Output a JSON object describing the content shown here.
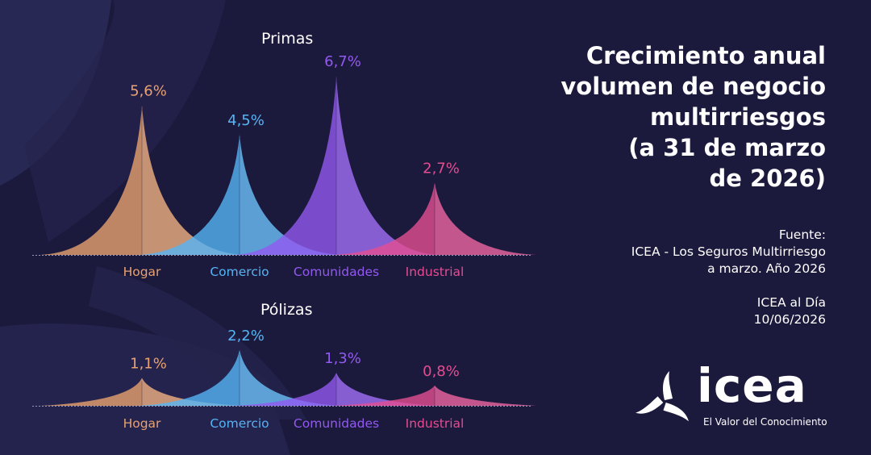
{
  "headline": [
    "Crecimiento anual",
    "volumen de negocio",
    "multirriesgos",
    "(a 31 de marzo",
    "de 2026)"
  ],
  "source": [
    "Fuente:",
    "ICEA - Los Seguros Multirriesgo",
    "a marzo. Año 2026"
  ],
  "publication": [
    "ICEA al Día",
    "10/06/2026"
  ],
  "logo": {
    "word": "icea",
    "tagline": "El Valor del Conocimiento",
    "icon": "triskelion-icon"
  },
  "colors": {
    "background": "#1c1a3c",
    "Hogar": "#e9a16f",
    "Comercio": "#55b4f5",
    "Comunidades": "#9259f0",
    "Industrial": "#e34d91"
  },
  "chart_data": [
    {
      "type": "area",
      "title": "Primas",
      "categories": [
        "Hogar",
        "Comercio",
        "Comunidades",
        "Industrial"
      ],
      "values": [
        5.6,
        4.5,
        6.7,
        2.7
      ],
      "labels": [
        "5,6%",
        "4,5%",
        "6,7%",
        "2,7%"
      ]
    },
    {
      "type": "area",
      "title": "Pólizas",
      "categories": [
        "Hogar",
        "Comercio",
        "Comunidades",
        "Industrial"
      ],
      "values": [
        1.1,
        2.2,
        1.3,
        0.8
      ],
      "labels": [
        "1,1%",
        "2,2%",
        "1,3%",
        "0,8%"
      ]
    }
  ]
}
